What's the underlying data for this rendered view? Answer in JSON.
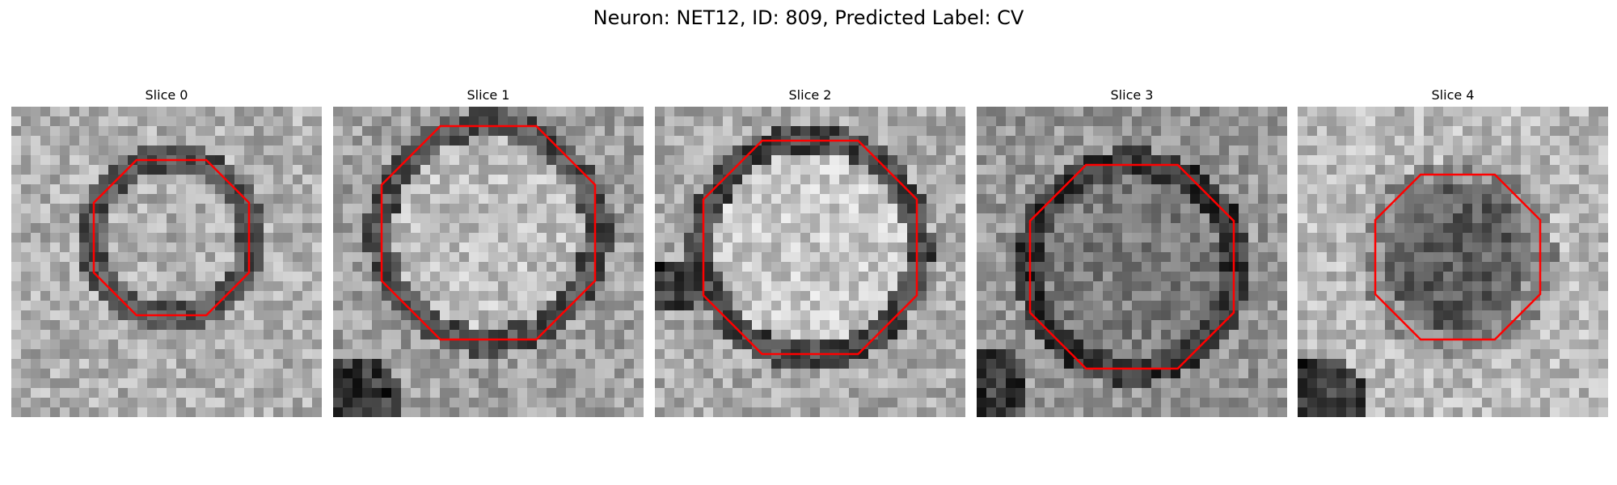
{
  "figure": {
    "title": "Neuron: NET12, ID: 809, Predicted Label: CV"
  },
  "slices": [
    {
      "label": "Slice 0"
    },
    {
      "label": "Slice 1"
    },
    {
      "label": "Slice 2"
    },
    {
      "label": "Slice 3"
    },
    {
      "label": "Slice 4"
    }
  ],
  "colors": {
    "contour": "#ff0000"
  }
}
